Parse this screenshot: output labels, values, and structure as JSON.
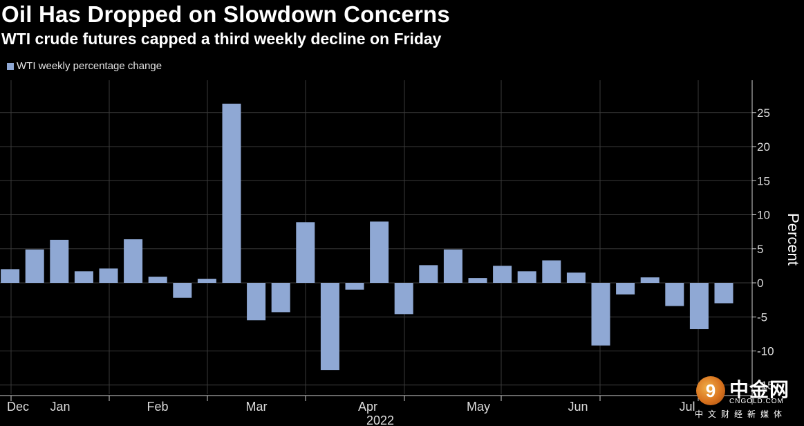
{
  "chart_data": {
    "type": "bar",
    "title": "Oil Has Dropped on Slowdown Concerns",
    "subtitle": "WTI crude futures capped a third weekly decline on Friday",
    "ylabel": "Percent",
    "xlabel": "2022",
    "ylim": [
      -15,
      30
    ],
    "yticks": [
      25,
      20,
      15,
      10,
      5,
      0,
      -5,
      -10,
      -15
    ],
    "ytick_labels": [
      "25",
      "20",
      "15",
      "10",
      "5",
      "0",
      "-5",
      "-10",
      "-15"
    ],
    "grid": true,
    "legend_position": "top-left",
    "months": [
      "Dec",
      "Jan",
      "Feb",
      "Mar",
      "Apr",
      "May",
      "Jun",
      "Jul"
    ],
    "series": [
      {
        "name": "WTI weekly percentage change",
        "color": "#8fa8d4",
        "values": [
          2.0,
          4.9,
          6.3,
          1.7,
          2.1,
          6.4,
          0.9,
          -2.2,
          0.6,
          26.3,
          -5.5,
          -4.3,
          8.9,
          -12.8,
          -1.0,
          9.0,
          -4.6,
          2.6,
          4.9,
          0.7,
          2.5,
          1.7,
          3.3,
          1.5,
          -9.2,
          -1.7,
          0.8,
          -3.4,
          -6.8,
          -3.0
        ]
      }
    ]
  },
  "watermark": {
    "logo_glyph": "9",
    "chinese": "中金网",
    "english": "CNGOLD.COM",
    "subtitle": "中文财经新媒体"
  }
}
